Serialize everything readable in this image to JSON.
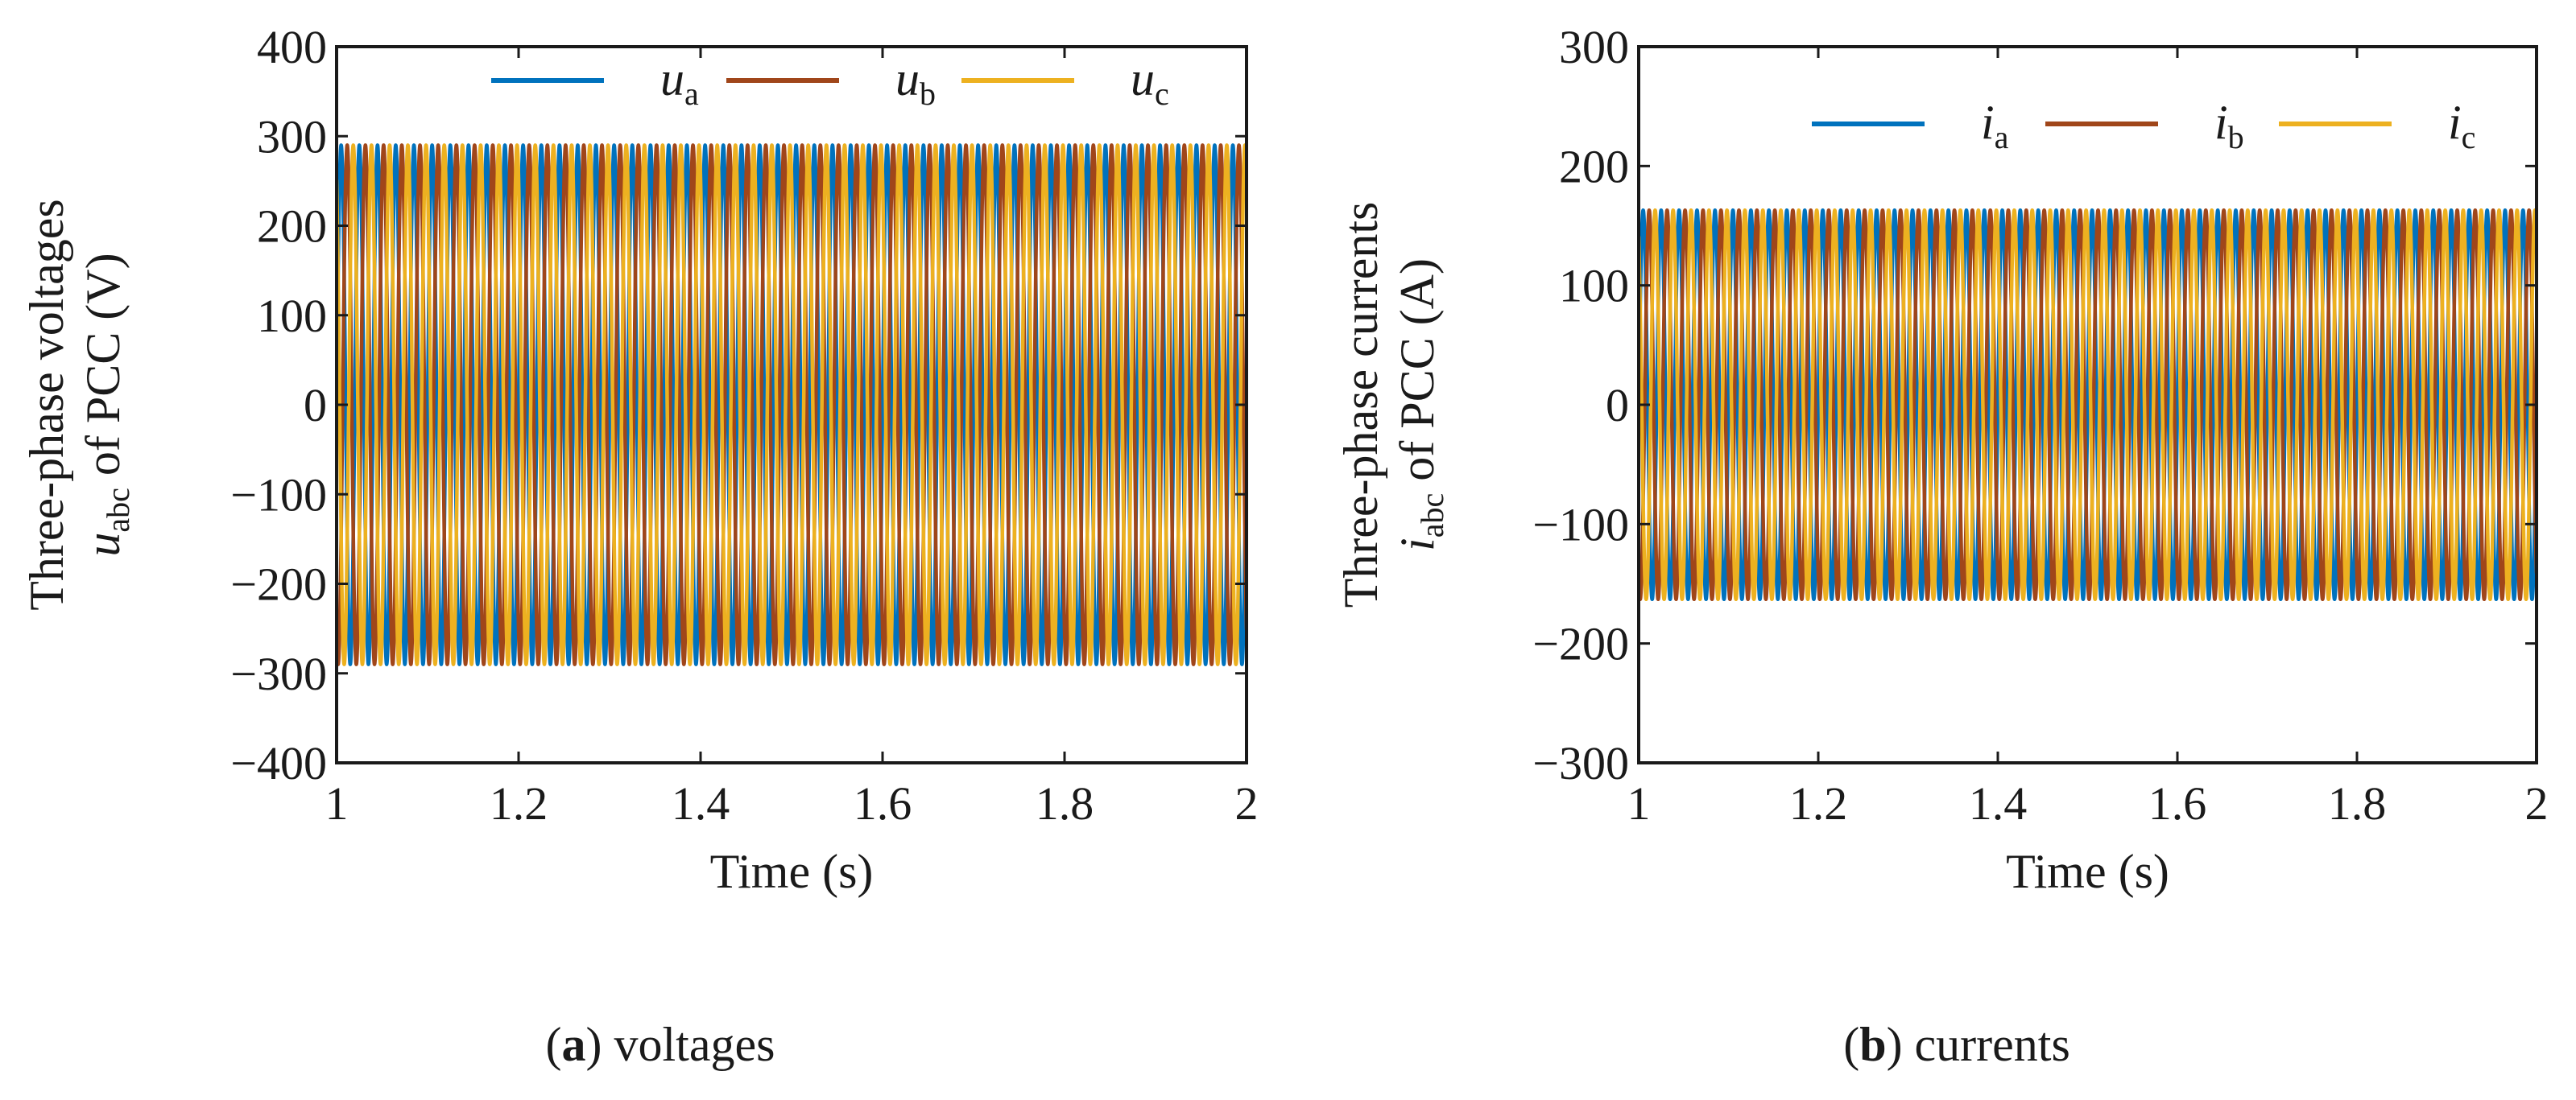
{
  "chart_data": [
    {
      "type": "line",
      "panel_id": "a",
      "caption_label": "a",
      "caption_text": "voltages",
      "title": "",
      "xlabel": "Time (s)",
      "ylabel_line1": "Three-phase voltages",
      "ylabel_symbol": "u",
      "ylabel_subscript": "abc",
      "ylabel_suffix": " of PCC (V)",
      "xlim": [
        1,
        2
      ],
      "ylim": [
        -400,
        400
      ],
      "xticks": [
        1,
        1.2,
        1.4,
        1.6,
        1.8,
        2
      ],
      "xtick_labels": [
        "1",
        "1.2",
        "1.4",
        "1.6",
        "1.8",
        "2"
      ],
      "yticks": [
        400,
        300,
        200,
        100,
        0,
        -100,
        -200,
        -300,
        -400
      ],
      "ytick_labels": [
        "400",
        "300",
        "200",
        "100",
        "0",
        "−100",
        "−200",
        "−300",
        "−400"
      ],
      "frequency_hz": 50,
      "amplitude": 290,
      "legend_position": "top-right",
      "series": [
        {
          "name_symbol": "u",
          "name_subscript": "a",
          "phase_deg": 0,
          "color": "#0072BD"
        },
        {
          "name_symbol": "u",
          "name_subscript": "b",
          "phase_deg": -120,
          "color": "#A0461A"
        },
        {
          "name_symbol": "u",
          "name_subscript": "c",
          "phase_deg": 120,
          "color": "#EDB120"
        }
      ]
    },
    {
      "type": "line",
      "panel_id": "b",
      "caption_label": "b",
      "caption_text": "currents",
      "title": "",
      "xlabel": "Time (s)",
      "ylabel_line1": "Three-phase currents",
      "ylabel_symbol": "i",
      "ylabel_subscript": "abc",
      "ylabel_suffix": " of PCC (A)",
      "xlim": [
        1,
        2
      ],
      "ylim": [
        -300,
        300
      ],
      "xticks": [
        1,
        1.2,
        1.4,
        1.6,
        1.8,
        2
      ],
      "xtick_labels": [
        "1",
        "1.2",
        "1.4",
        "1.6",
        "1.8",
        "2"
      ],
      "yticks": [
        300,
        200,
        100,
        0,
        -100,
        -200,
        -300
      ],
      "ytick_labels": [
        "300",
        "200",
        "100",
        "0",
        "−100",
        "−200",
        "−300"
      ],
      "frequency_hz": 50,
      "amplitude": 163,
      "legend_position": "top-right",
      "series": [
        {
          "name_symbol": "i",
          "name_subscript": "a",
          "phase_deg": 0,
          "color": "#0072BD"
        },
        {
          "name_symbol": "i",
          "name_subscript": "b",
          "phase_deg": -120,
          "color": "#A0461A"
        },
        {
          "name_symbol": "i",
          "name_subscript": "c",
          "phase_deg": 120,
          "color": "#EDB120"
        }
      ]
    }
  ]
}
